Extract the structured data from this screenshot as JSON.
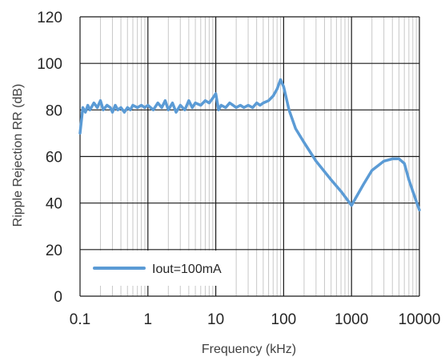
{
  "chart_data": {
    "type": "line",
    "title": "",
    "xlabel": "Frequency (kHz)",
    "ylabel": "Ripple Rejection RR (dB)",
    "x_scale": "log",
    "xlim": [
      0.1,
      10000
    ],
    "ylim": [
      0,
      120
    ],
    "x_ticks": [
      0.1,
      1,
      10,
      100,
      1000,
      10000
    ],
    "x_tick_labels": [
      "0.1",
      "1",
      "10",
      "100",
      "1000",
      "10000"
    ],
    "y_ticks": [
      0,
      20,
      40,
      60,
      80,
      100,
      120
    ],
    "y_tick_labels": [
      "0",
      "20",
      "40",
      "60",
      "80",
      "100",
      "120"
    ],
    "grid": "major and minor (log decades)",
    "legend": "bottom-left",
    "line_color": "#5b9bd5",
    "series": [
      {
        "name": "Iout=100mA",
        "x": [
          0.1,
          0.11,
          0.12,
          0.13,
          0.14,
          0.16,
          0.18,
          0.2,
          0.22,
          0.25,
          0.28,
          0.3,
          0.33,
          0.36,
          0.4,
          0.45,
          0.5,
          0.55,
          0.6,
          0.7,
          0.8,
          0.9,
          1,
          1.2,
          1.4,
          1.6,
          1.8,
          2,
          2.3,
          2.6,
          3,
          3.5,
          4,
          4.5,
          5,
          6,
          7,
          8,
          9,
          10,
          11,
          12,
          14,
          16,
          18,
          20,
          23,
          26,
          30,
          35,
          40,
          45,
          50,
          60,
          70,
          80,
          90,
          100,
          120,
          150,
          200,
          300,
          500,
          700,
          1000,
          1500,
          2000,
          3000,
          4000,
          5000,
          6000,
          7000,
          8000,
          10000
        ],
        "y": [
          70,
          81,
          79,
          82,
          80,
          83,
          81,
          84,
          80,
          82,
          81,
          79,
          82,
          80,
          81,
          79,
          81,
          80,
          82,
          81,
          82,
          81,
          82,
          80,
          83,
          81,
          84,
          80,
          83,
          79,
          82,
          80,
          84,
          81,
          83,
          82,
          84,
          83,
          85,
          87,
          80,
          82,
          81,
          83,
          82,
          81,
          82,
          81,
          82,
          81,
          83,
          82,
          83,
          84,
          86,
          89,
          93,
          90,
          80,
          72,
          66,
          58,
          50,
          45,
          39,
          48,
          54,
          58,
          59,
          59,
          57,
          50,
          45,
          37
        ]
      }
    ]
  }
}
